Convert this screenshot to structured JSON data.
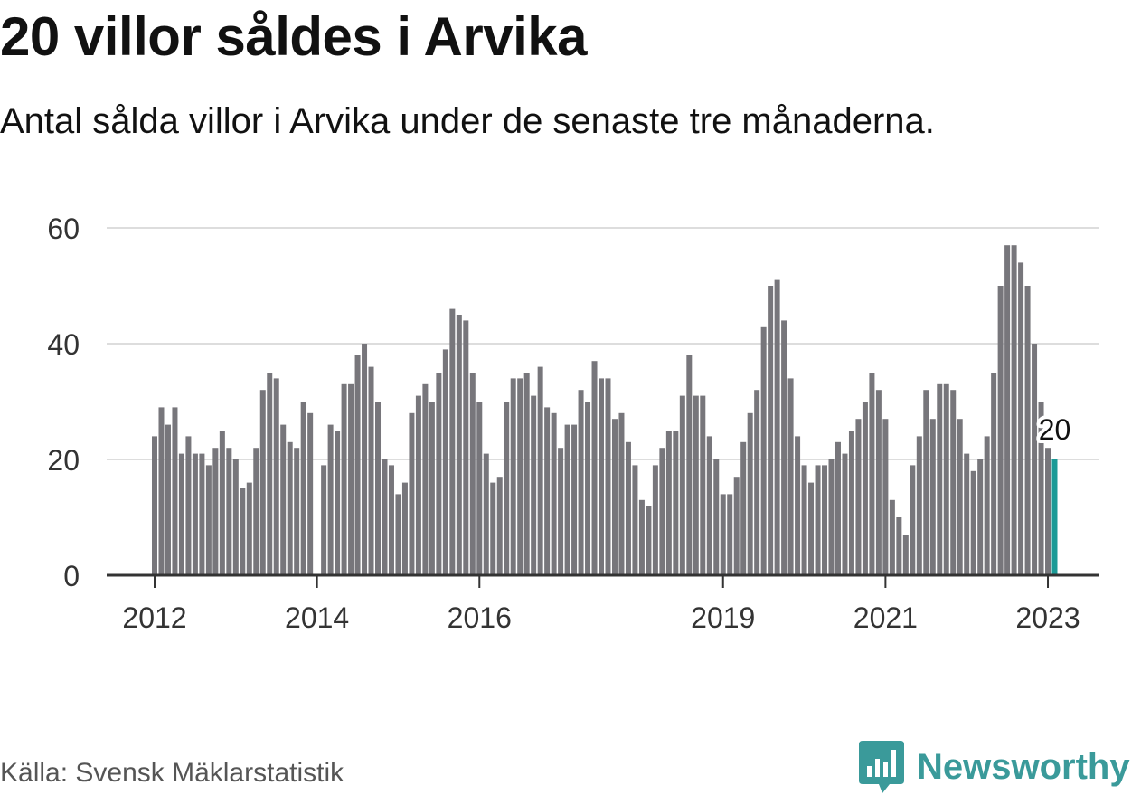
{
  "header": {
    "title": "20 villor såldes i Arvika",
    "subtitle": "Antal sålda villor i Arvika under de senaste tre månaderna."
  },
  "footer": {
    "source": "Källa: Svensk Mäklarstatistik",
    "brand": "Newsworthy",
    "brand_color": "#3a9a9a"
  },
  "colors": {
    "bar": "#77767b",
    "highlight": "#1b9a96",
    "grid": "#dddddd",
    "axis": "#333333"
  },
  "chart_data": {
    "type": "bar",
    "title": "20 villor såldes i Arvika",
    "subtitle": "Antal sålda villor i Arvika under de senaste tre månaderna.",
    "xlabel": "",
    "ylabel": "",
    "ylim": [
      0,
      60
    ],
    "yticks": [
      0,
      20,
      40,
      60
    ],
    "grid": true,
    "x_start": "2012-01",
    "xtick_labels": [
      {
        "label": "2012",
        "date": "2012-01"
      },
      {
        "label": "2014",
        "date": "2014-01"
      },
      {
        "label": "2016",
        "date": "2016-01"
      },
      {
        "label": "2019",
        "date": "2019-01"
      },
      {
        "label": "2021",
        "date": "2021-01"
      },
      {
        "label": "2023",
        "date": "2023-01"
      }
    ],
    "values": [
      24,
      29,
      26,
      29,
      21,
      24,
      21,
      21,
      19,
      22,
      25,
      22,
      20,
      15,
      16,
      22,
      32,
      35,
      34,
      26,
      23,
      22,
      30,
      28,
      0,
      19,
      26,
      25,
      33,
      33,
      38,
      40,
      36,
      30,
      20,
      19,
      14,
      16,
      28,
      31,
      33,
      30,
      35,
      39,
      46,
      45,
      44,
      35,
      30,
      21,
      16,
      17,
      30,
      34,
      34,
      35,
      31,
      36,
      29,
      28,
      22,
      26,
      26,
      32,
      30,
      37,
      34,
      34,
      27,
      28,
      23,
      19,
      13,
      12,
      19,
      22,
      25,
      25,
      31,
      38,
      31,
      31,
      24,
      20,
      14,
      14,
      17,
      23,
      28,
      32,
      43,
      50,
      51,
      44,
      34,
      24,
      19,
      16,
      19,
      19,
      20,
      23,
      21,
      25,
      27,
      30,
      35,
      32,
      27,
      13,
      10,
      7,
      19,
      24,
      32,
      27,
      33,
      33,
      32,
      27,
      21,
      18,
      20,
      24,
      35,
      50,
      57,
      57,
      54,
      50,
      40,
      30,
      22,
      20
    ],
    "highlight_label": "20"
  }
}
